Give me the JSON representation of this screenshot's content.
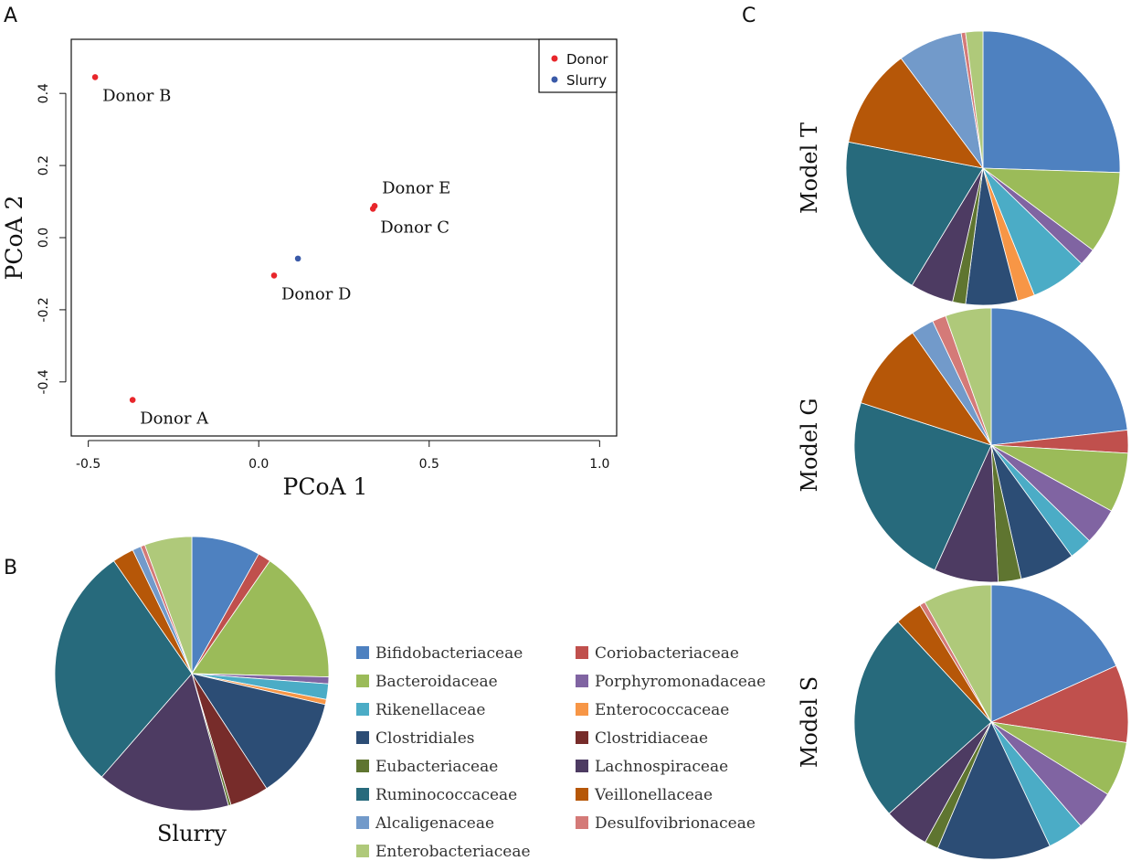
{
  "panels": {
    "a": "A",
    "b": "B",
    "c": "C"
  },
  "chart_data": [
    {
      "type": "scatter",
      "panel": "A",
      "xlabel": "PCoA 1",
      "ylabel": "PCoA 2",
      "xlim": [
        -0.55,
        1.05
      ],
      "ylim": [
        -0.55,
        0.55
      ],
      "xticks": [
        -0.5,
        0.0,
        0.5,
        1.0
      ],
      "xtick_labels": [
        "-0.5",
        "0.0",
        "0.5",
        "1.0"
      ],
      "yticks": [
        -0.4,
        -0.2,
        0.0,
        0.2,
        0.4
      ],
      "ytick_labels": [
        "-0.4",
        "-0.2",
        "0.0",
        "0.2",
        "0.4"
      ],
      "legend": {
        "position": "top-right",
        "entries": [
          {
            "name": "Donor",
            "color": "#e8262b"
          },
          {
            "name": "Slurry",
            "color": "#3a5aa8"
          }
        ]
      },
      "points": [
        {
          "label": "Donor B",
          "group": "Donor",
          "x": -0.48,
          "y": 0.445,
          "label_dir": "below-right"
        },
        {
          "label": "Donor E",
          "group": "Donor",
          "x": 0.34,
          "y": 0.088,
          "label_dir": "above-right"
        },
        {
          "label": "Donor C",
          "group": "Donor",
          "x": 0.335,
          "y": 0.08,
          "label_dir": "below-right"
        },
        {
          "label": "",
          "group": "Slurry",
          "x": 0.115,
          "y": -0.058,
          "label_dir": "none"
        },
        {
          "label": "Donor D",
          "group": "Donor",
          "x": 0.045,
          "y": -0.105,
          "label_dir": "below-right"
        },
        {
          "label": "Donor A",
          "group": "Donor",
          "x": -0.37,
          "y": -0.45,
          "label_dir": "below-right"
        }
      ]
    },
    {
      "type": "pie",
      "panel": "B",
      "title": "Slurry",
      "title_position": "below",
      "slices": [
        {
          "family": "Bifidobacteriaceae",
          "value": 8.0
        },
        {
          "family": "Coriobacteriaceae",
          "value": 1.5
        },
        {
          "family": "Bacteroidaceae",
          "value": 15.5
        },
        {
          "family": "Porphyromonadaceae",
          "value": 0.8
        },
        {
          "family": "Rikenellaceae",
          "value": 1.8
        },
        {
          "family": "Enterococcaceae",
          "value": 0.6
        },
        {
          "family": "Clostridiales",
          "value": 12.0
        },
        {
          "family": "Clostridiaceae",
          "value": 4.5
        },
        {
          "family": "Eubacteriaceae",
          "value": 0.3
        },
        {
          "family": "Lachnospiraceae",
          "value": 15.5
        },
        {
          "family": "Ruminococcaceae",
          "value": 28.5
        },
        {
          "family": "Veillonellaceae",
          "value": 2.5
        },
        {
          "family": "Alcaligenaceae",
          "value": 1.0
        },
        {
          "family": "Desulfovibrionaceae",
          "value": 0.5
        },
        {
          "family": "Enterobacteriaceae",
          "value": 5.5
        }
      ]
    },
    {
      "type": "pie",
      "panel": "C",
      "title": "Model T",
      "title_position": "left-vertical",
      "slices": [
        {
          "family": "Bifidobacteriaceae",
          "value": 25.0
        },
        {
          "family": "Coriobacteriaceae",
          "value": 0.0
        },
        {
          "family": "Bacteroidaceae",
          "value": 9.5
        },
        {
          "family": "Porphyromonadaceae",
          "value": 2.0
        },
        {
          "family": "Rikenellaceae",
          "value": 6.5
        },
        {
          "family": "Enterococcaceae",
          "value": 2.0
        },
        {
          "family": "Clostridiales",
          "value": 6.0
        },
        {
          "family": "Clostridiaceae",
          "value": 0.0
        },
        {
          "family": "Eubacteriaceae",
          "value": 1.5
        },
        {
          "family": "Lachnospiraceae",
          "value": 5.0
        },
        {
          "family": "Ruminococcaceae",
          "value": 19.0
        },
        {
          "family": "Veillonellaceae",
          "value": 11.5
        },
        {
          "family": "Alcaligenaceae",
          "value": 7.5
        },
        {
          "family": "Desulfovibrionaceae",
          "value": 0.5
        },
        {
          "family": "Enterobacteriaceae",
          "value": 2.0
        }
      ]
    },
    {
      "type": "pie",
      "panel": "C",
      "title": "Model G",
      "title_position": "left-vertical",
      "slices": [
        {
          "family": "Bifidobacteriaceae",
          "value": 21.5
        },
        {
          "family": "Coriobacteriaceae",
          "value": 2.5
        },
        {
          "family": "Bacteroidaceae",
          "value": 6.5
        },
        {
          "family": "Porphyromonadaceae",
          "value": 4.0
        },
        {
          "family": "Rikenellaceae",
          "value": 2.5
        },
        {
          "family": "Enterococcaceae",
          "value": 0.0
        },
        {
          "family": "Clostridiales",
          "value": 6.0
        },
        {
          "family": "Clostridiaceae",
          "value": 0.0
        },
        {
          "family": "Eubacteriaceae",
          "value": 2.5
        },
        {
          "family": "Lachnospiraceae",
          "value": 7.0
        },
        {
          "family": "Ruminococcaceae",
          "value": 21.5
        },
        {
          "family": "Veillonellaceae",
          "value": 9.5
        },
        {
          "family": "Alcaligenaceae",
          "value": 2.5
        },
        {
          "family": "Desulfovibrionaceae",
          "value": 1.5
        },
        {
          "family": "Enterobacteriaceae",
          "value": 5.0
        }
      ]
    },
    {
      "type": "pie",
      "panel": "C",
      "title": "Model S",
      "title_position": "left-vertical",
      "slices": [
        {
          "family": "Bifidobacteriaceae",
          "value": 17.0
        },
        {
          "family": "Coriobacteriaceae",
          "value": 8.5
        },
        {
          "family": "Bacteroidaceae",
          "value": 6.0
        },
        {
          "family": "Porphyromonadaceae",
          "value": 4.5
        },
        {
          "family": "Rikenellaceae",
          "value": 4.0
        },
        {
          "family": "Enterococcaceae",
          "value": 0.0
        },
        {
          "family": "Clostridiales",
          "value": 12.5
        },
        {
          "family": "Clostridiaceae",
          "value": 0.0
        },
        {
          "family": "Eubacteriaceae",
          "value": 1.5
        },
        {
          "family": "Lachnospiraceae",
          "value": 5.0
        },
        {
          "family": "Ruminococcaceae",
          "value": 23.0
        },
        {
          "family": "Veillonellaceae",
          "value": 3.0
        },
        {
          "family": "Alcaligenaceae",
          "value": 0.0
        },
        {
          "family": "Desulfovibrionaceae",
          "value": 0.6
        },
        {
          "family": "Enterobacteriaceae",
          "value": 7.5
        }
      ]
    }
  ],
  "family_legend": [
    {
      "name": "Bifidobacteriaceae",
      "color": "#4e81c0"
    },
    {
      "name": "Coriobacteriaceae",
      "color": "#c0504d"
    },
    {
      "name": "Bacteroidaceae",
      "color": "#9bbb59"
    },
    {
      "name": "Porphyromonadaceae",
      "color": "#8064a2"
    },
    {
      "name": "Rikenellaceae",
      "color": "#4bacc6"
    },
    {
      "name": "Enterococcaceae",
      "color": "#f79646"
    },
    {
      "name": "Clostridiales",
      "color": "#2c4d75"
    },
    {
      "name": "Clostridiaceae",
      "color": "#772c2a"
    },
    {
      "name": "Eubacteriaceae",
      "color": "#5f7530"
    },
    {
      "name": "Lachnospiraceae",
      "color": "#4d3b62"
    },
    {
      "name": "Ruminococcaceae",
      "color": "#276a7c"
    },
    {
      "name": "Veillonellaceae",
      "color": "#b65708"
    },
    {
      "name": "Alcaligenaceae",
      "color": "#729aca"
    },
    {
      "name": "Desulfovibrionaceae",
      "color": "#d47a78"
    },
    {
      "name": "Enterobacteriaceae",
      "color": "#afc97a"
    }
  ]
}
